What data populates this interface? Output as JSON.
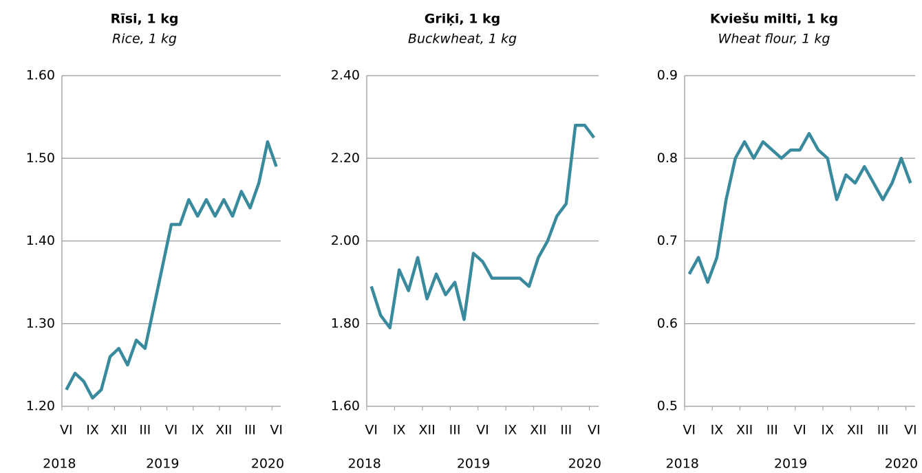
{
  "chart_data": [
    {
      "type": "line",
      "title": "Rīsi, 1 kg",
      "subtitle": "Rice, 1 kg",
      "categories": [
        "VI",
        null,
        null,
        "IX",
        null,
        null,
        "XII",
        null,
        null,
        "III",
        null,
        null,
        "VI",
        null,
        null,
        "IX",
        null,
        null,
        "XII",
        null,
        null,
        "III",
        null,
        null,
        "VI"
      ],
      "years": [
        "2018",
        "2019",
        "2020"
      ],
      "series": [
        {
          "name": "Rice",
          "color": "#3a8a9e",
          "values": [
            1.22,
            1.24,
            1.23,
            1.21,
            1.22,
            1.26,
            1.27,
            1.25,
            1.28,
            1.27,
            1.32,
            1.37,
            1.42,
            1.42,
            1.45,
            1.43,
            1.45,
            1.43,
            1.45,
            1.43,
            1.46,
            1.44,
            1.47,
            1.52,
            1.49
          ]
        }
      ],
      "ylim": [
        1.2,
        1.6
      ],
      "yticks": [
        {
          "value": 1.2,
          "label": "1.20"
        },
        {
          "value": 1.3,
          "label": "1.30"
        },
        {
          "value": 1.4,
          "label": "1.40"
        },
        {
          "value": 1.5,
          "label": "1.50"
        },
        {
          "value": 1.6,
          "label": "1.60"
        }
      ],
      "grid": true
    },
    {
      "type": "line",
      "title": "Griķi, 1 kg",
      "subtitle": "Buckwheat, 1 kg",
      "categories": [
        "VI",
        null,
        null,
        "IX",
        null,
        null,
        "XII",
        null,
        null,
        "III",
        null,
        null,
        "VI",
        null,
        null,
        "IX",
        null,
        null,
        "XII",
        null,
        null,
        "III",
        null,
        null,
        "VI"
      ],
      "years": [
        "2018",
        "2019",
        "2020"
      ],
      "series": [
        {
          "name": "Buckwheat",
          "color": "#3a8a9e",
          "values": [
            1.89,
            1.82,
            1.79,
            1.93,
            1.88,
            1.96,
            1.86,
            1.92,
            1.87,
            1.9,
            1.81,
            1.97,
            1.95,
            1.91,
            1.91,
            1.91,
            1.91,
            1.89,
            1.96,
            2.0,
            2.06,
            2.09,
            2.28,
            2.28,
            2.25
          ]
        }
      ],
      "ylim": [
        1.6,
        2.4
      ],
      "yticks": [
        {
          "value": 1.6,
          "label": "1.60"
        },
        {
          "value": 1.8,
          "label": "1.80"
        },
        {
          "value": 2.0,
          "label": "2.00"
        },
        {
          "value": 2.2,
          "label": "2.20"
        },
        {
          "value": 2.4,
          "label": "2.40"
        }
      ],
      "grid": true
    },
    {
      "type": "line",
      "title": "Kviešu milti, 1 kg",
      "subtitle": "Wheat flour, 1 kg",
      "categories": [
        "VI",
        null,
        null,
        "IX",
        null,
        null,
        "XII",
        null,
        null,
        "III",
        null,
        null,
        "VI",
        null,
        null,
        "IX",
        null,
        null,
        "XII",
        null,
        null,
        "III",
        null,
        null,
        "VI"
      ],
      "years": [
        "2018",
        "2019",
        "2020"
      ],
      "series": [
        {
          "name": "Wheat flour",
          "color": "#3a8a9e",
          "values": [
            0.66,
            0.68,
            0.65,
            0.68,
            0.75,
            0.8,
            0.82,
            0.8,
            0.82,
            0.81,
            0.8,
            0.81,
            0.81,
            0.83,
            0.81,
            0.8,
            0.75,
            0.78,
            0.77,
            0.79,
            0.77,
            0.75,
            0.77,
            0.8,
            0.77
          ]
        }
      ],
      "ylim": [
        0.5,
        0.9
      ],
      "yticks": [
        0.5,
        0.6,
        0.7,
        0.8,
        0.9
      ],
      "grid": true
    }
  ]
}
